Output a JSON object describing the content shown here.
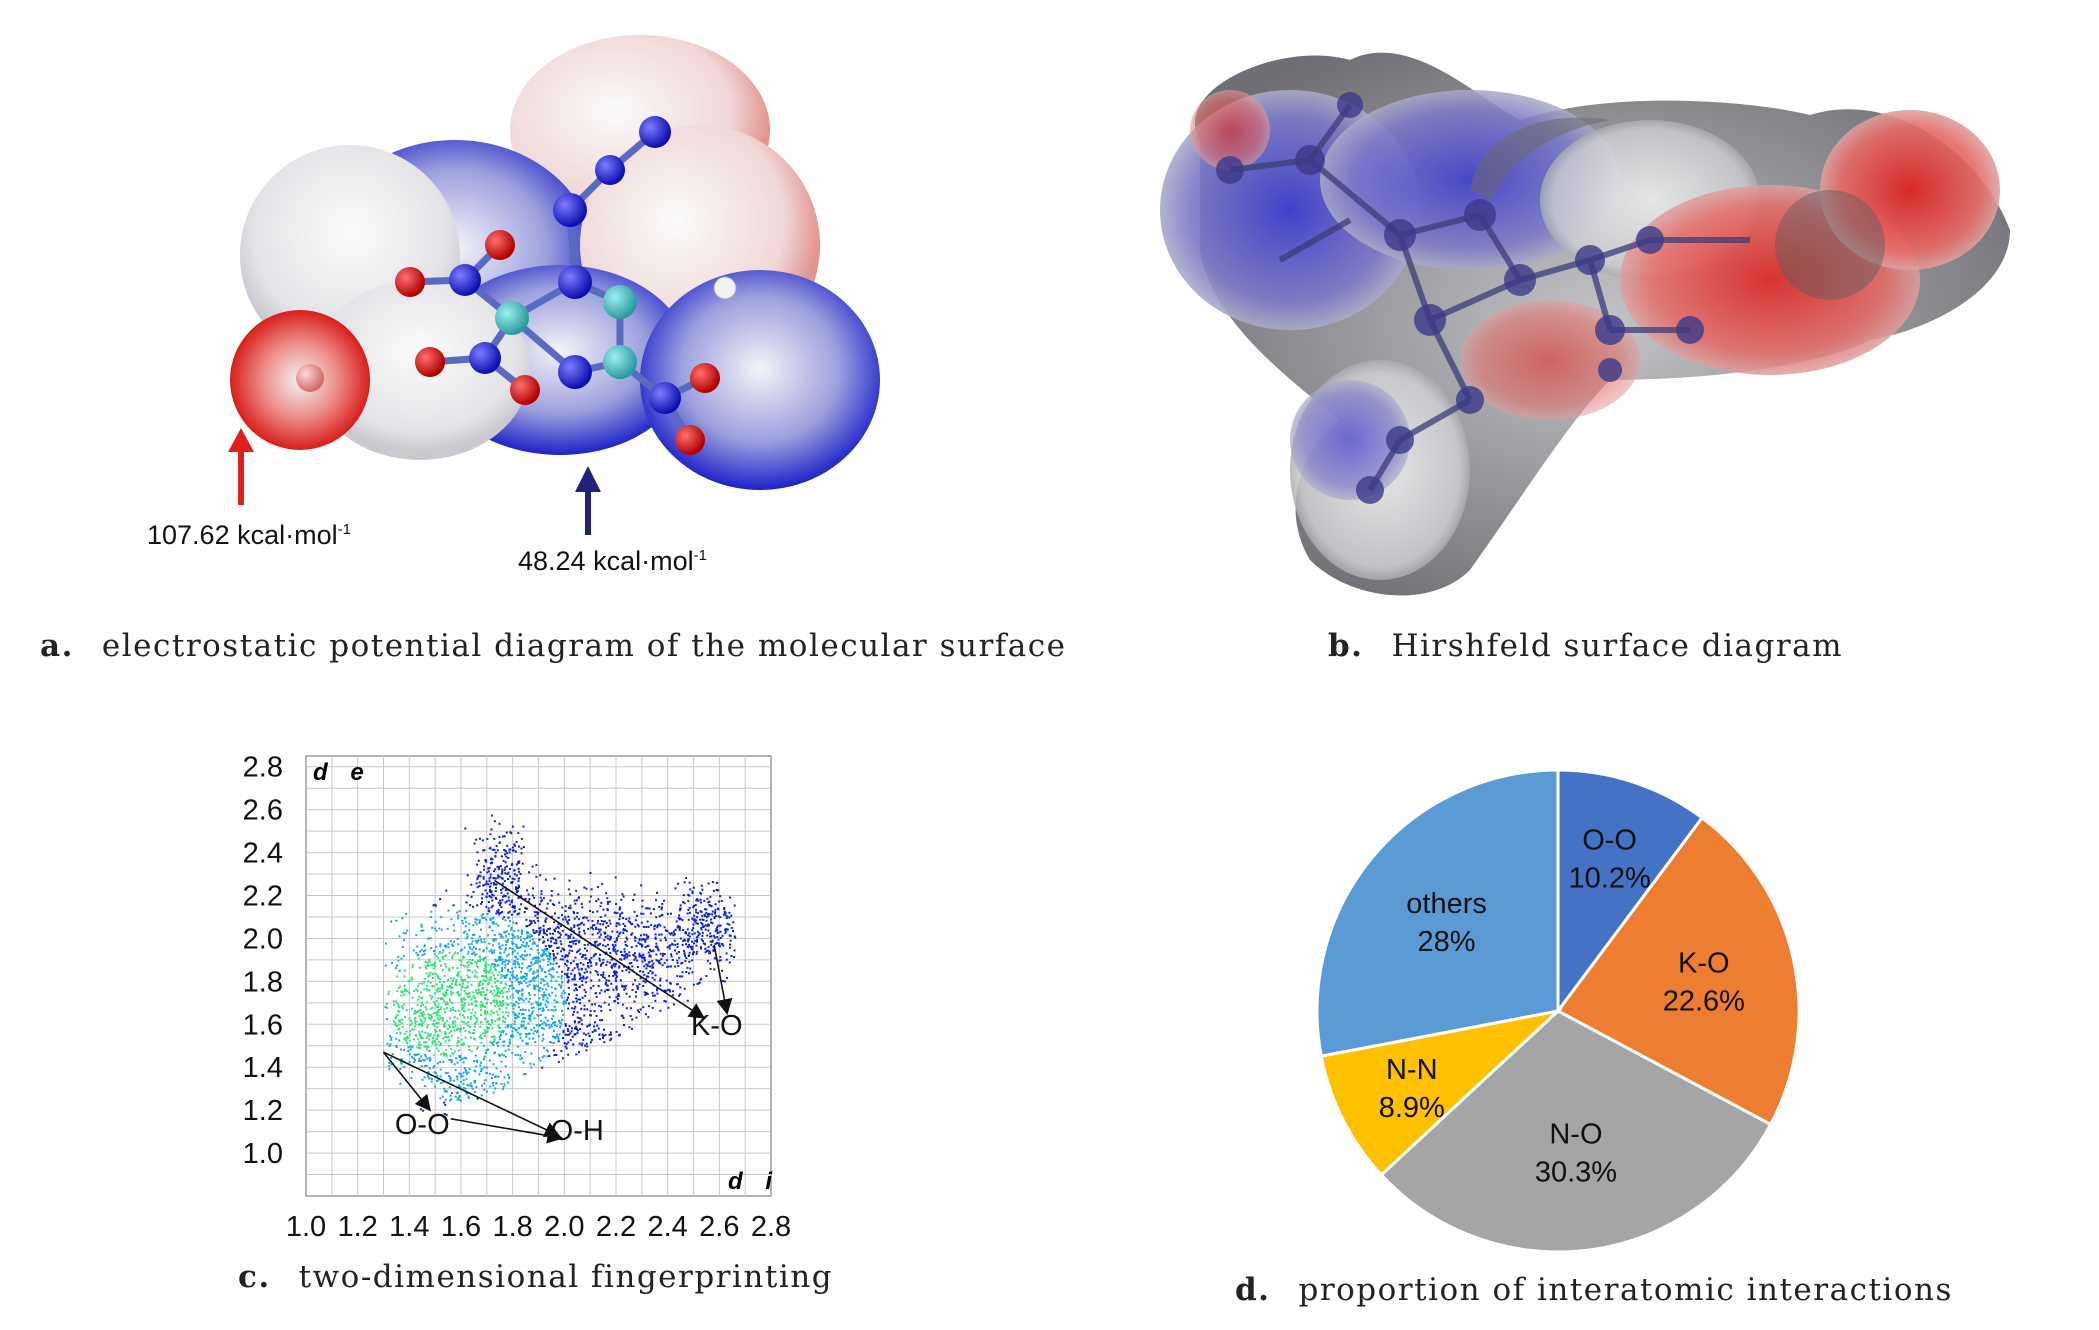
{
  "panel_a": {
    "letter": "a.",
    "caption": "electrostatic potential diagram of the molecular surface",
    "max_label": "107.62 kcal·mol",
    "min_label": "48.24 kcal·mol",
    "unit_exponent": "-1",
    "colors": {
      "positive": "#e0201c",
      "negative": "#1a1acc",
      "neutral": "#f2f2f2"
    }
  },
  "panel_b": {
    "letter": "b.",
    "caption": "Hirshfeld surface diagram",
    "colors": {
      "red": "#d81a1a",
      "blue": "#2424b8",
      "white": "#f4f4f4"
    }
  },
  "panel_c": {
    "letter": "c.",
    "caption": "two-dimensional fingerprinting"
  },
  "panel_d": {
    "letter": "d.",
    "caption": "proportion of interatomic interactions"
  },
  "chart_data": [
    {
      "type": "scatter",
      "xlabel": "d i",
      "ylabel": "d e",
      "xlim": [
        1.0,
        2.8
      ],
      "ylim": [
        0.8,
        2.85
      ],
      "x_ticks": [
        "1.0",
        "1.2",
        "1.4",
        "1.6",
        "1.8",
        "2.0",
        "2.2",
        "2.4",
        "2.6",
        "2.8"
      ],
      "y_ticks": [
        "1.0",
        "1.2",
        "1.4",
        "1.6",
        "1.8",
        "2.0",
        "2.2",
        "2.4",
        "2.6",
        "2.8"
      ],
      "grid": true,
      "annotations": [
        {
          "text": "K-O",
          "at": [
            2.59,
            1.55
          ],
          "points_to": [
            [
              2.62,
              1.71
            ],
            [
              2.48,
              1.62
            ]
          ]
        },
        {
          "text": "O-O",
          "at": [
            1.45,
            1.09
          ],
          "points_to": [
            [
              1.52,
              1.25
            ]
          ]
        },
        {
          "text": "O-H",
          "at": [
            2.05,
            1.06
          ],
          "points_to": [
            [
              1.96,
              1.12
            ]
          ]
        }
      ],
      "point_colors": [
        "#0a1ee0",
        "#12a8e8",
        "#33e07a"
      ]
    },
    {
      "type": "pie",
      "start": "top",
      "direction": "clockwise",
      "slices": [
        {
          "label": "O-O",
          "value": 10.2,
          "text": "10.2%",
          "color": "#4472c4"
        },
        {
          "label": "K-O",
          "value": 22.6,
          "text": "22.6%",
          "color": "#ed7d31"
        },
        {
          "label": "N-O",
          "value": 30.3,
          "text": "30.3%",
          "color": "#a5a5a5"
        },
        {
          "label": "N-N",
          "value": 8.9,
          "text": "8.9%",
          "color": "#ffc000"
        },
        {
          "label": "others",
          "value": 28,
          "text": "28%",
          "color": "#5b9bd5"
        }
      ]
    }
  ]
}
